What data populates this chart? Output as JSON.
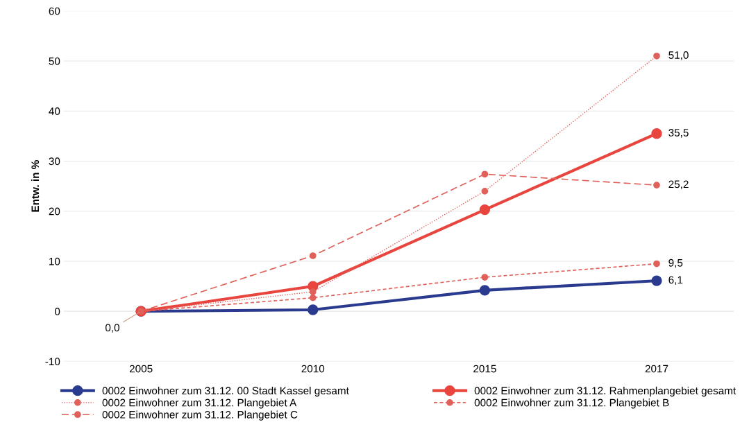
{
  "chart_data": {
    "type": "line",
    "ylabel": "Entw. in %",
    "categories": [
      "2005",
      "2010",
      "2015",
      "2017"
    ],
    "ylim": [
      -10,
      60
    ],
    "yticks": [
      -10,
      0,
      10,
      20,
      30,
      40,
      50,
      60
    ],
    "grid": "y",
    "legend": "bottom",
    "marker": "circle",
    "series": [
      {
        "name": "0002 Einwohner zum 31.12. 00 Stadt Kassel gesamt",
        "color": "#2a3b8f",
        "line_style": "solid",
        "values": [
          0.0,
          0.3,
          4.2,
          6.1
        ],
        "value_labels": [
          "0,0",
          null,
          null,
          "6,1"
        ]
      },
      {
        "name": "0002 Einwohner zum 31.12. Rahmenplangebiet gesamt",
        "color": "#e8453e",
        "line_style": "solid",
        "values": [
          0.0,
          5.0,
          20.3,
          35.5
        ],
        "value_labels": [
          null,
          null,
          null,
          "35,5"
        ]
      },
      {
        "name": "0002 Einwohner zum 31.12. Plangebiet A",
        "color": "#e0605a",
        "line_style": "dotted",
        "values": [
          0.0,
          3.9,
          24.0,
          51.0
        ],
        "value_labels": [
          null,
          null,
          null,
          "51,0"
        ]
      },
      {
        "name": "0002 Einwohner zum 31.12. Plangebiet B",
        "color": "#e0605a",
        "line_style": "dashed",
        "values": [
          0.0,
          2.7,
          6.8,
          9.5
        ],
        "value_labels": [
          null,
          null,
          null,
          "9,5"
        ]
      },
      {
        "name": "0002 Einwohner zum 31.12. Plangebiet C",
        "color": "#e0605a",
        "line_style": "dashed",
        "values": [
          0.0,
          11.1,
          27.4,
          25.2
        ],
        "value_labels": [
          null,
          null,
          null,
          "25,2"
        ]
      }
    ]
  }
}
